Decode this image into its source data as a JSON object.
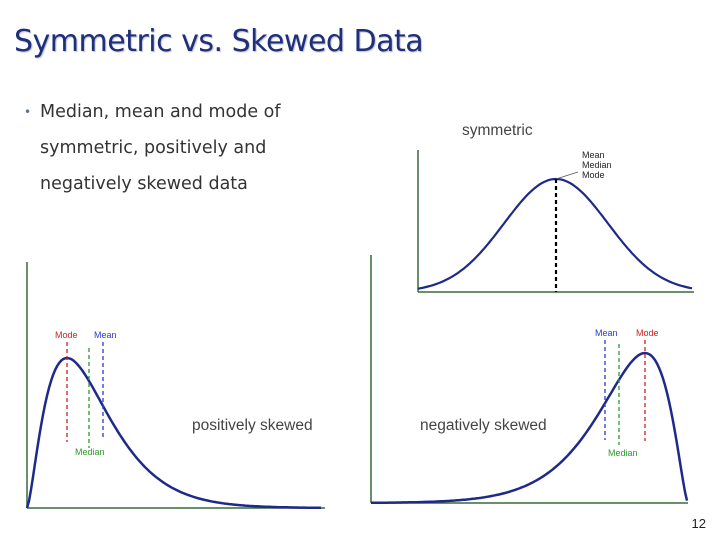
{
  "slide": {
    "title": "Symmetric vs. Skewed Data",
    "bullet": [
      "Median, mean and mode of",
      "symmetric, positively and",
      "negatively skewed data"
    ],
    "page_number": "12"
  },
  "panels": {
    "symmetric": {
      "label": "symmetric",
      "annotation": [
        "Mean",
        "Median",
        "Mode"
      ]
    },
    "positive": {
      "label": "positively skewed",
      "mode_label": "Mode",
      "mean_label": "Mean",
      "median_label": "Median"
    },
    "negative": {
      "label": "negatively skewed",
      "mean_label": "Mean",
      "mode_label": "Mode",
      "median_label": "Median"
    }
  },
  "colors": {
    "curve": "#1e2a8a",
    "mode": "#d02020",
    "mean": "#2a3ad0",
    "median": "#2a9a2a",
    "axis": "#3a6a3a",
    "title": "#1f2f7a"
  }
}
